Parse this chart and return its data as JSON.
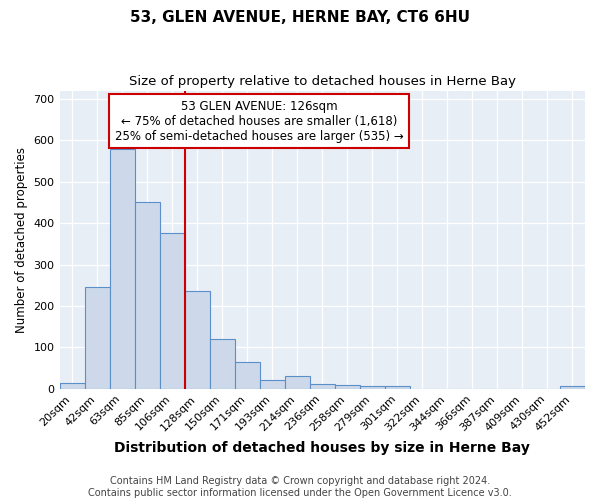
{
  "title": "53, GLEN AVENUE, HERNE BAY, CT6 6HU",
  "subtitle": "Size of property relative to detached houses in Herne Bay",
  "xlabel": "Distribution of detached houses by size in Herne Bay",
  "ylabel": "Number of detached properties",
  "bar_color": "#cdd9ea",
  "bar_edge_color": "#5b8fc9",
  "background_color": "#e8eef6",
  "grid_color": "#ffffff",
  "fig_bg_color": "#ffffff",
  "bin_labels": [
    "20sqm",
    "42sqm",
    "63sqm",
    "85sqm",
    "106sqm",
    "128sqm",
    "150sqm",
    "171sqm",
    "193sqm",
    "214sqm",
    "236sqm",
    "258sqm",
    "279sqm",
    "301sqm",
    "322sqm",
    "344sqm",
    "366sqm",
    "387sqm",
    "409sqm",
    "430sqm",
    "452sqm"
  ],
  "bar_values": [
    15,
    245,
    580,
    450,
    375,
    235,
    120,
    65,
    22,
    30,
    12,
    10,
    8,
    7,
    0,
    0,
    0,
    0,
    0,
    0,
    7
  ],
  "red_line_index": 5,
  "ylim": [
    0,
    720
  ],
  "yticks": [
    0,
    100,
    200,
    300,
    400,
    500,
    600,
    700
  ],
  "annotation_title": "53 GLEN AVENUE: 126sqm",
  "annotation_line1": "← 75% of detached houses are smaller (1,618)",
  "annotation_line2": "25% of semi-detached houses are larger (535) →",
  "footer_line1": "Contains HM Land Registry data © Crown copyright and database right 2024.",
  "footer_line2": "Contains public sector information licensed under the Open Government Licence v3.0.",
  "annotation_box_color": "#ffffff",
  "annotation_box_edge": "#cc0000",
  "red_line_color": "#cc0000",
  "title_fontsize": 11,
  "subtitle_fontsize": 9.5,
  "xlabel_fontsize": 10,
  "ylabel_fontsize": 8.5,
  "tick_fontsize": 8,
  "annotation_fontsize": 8.5,
  "footer_fontsize": 7
}
